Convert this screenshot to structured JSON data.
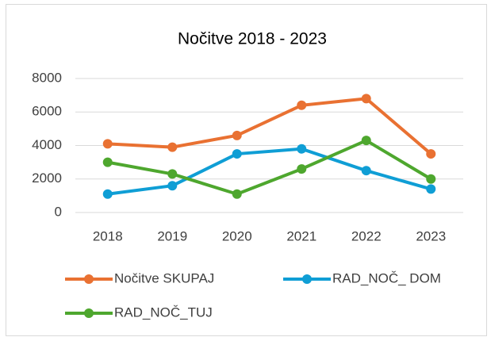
{
  "chart_data": {
    "type": "line",
    "title": "Nočitve 2018 - 2023",
    "categories": [
      "2018",
      "2019",
      "2020",
      "2021",
      "2022",
      "2023"
    ],
    "series": [
      {
        "name": "Nočitve SKUPAJ",
        "color": "#e97132",
        "values": [
          4100,
          3900,
          4600,
          6400,
          6800,
          3500
        ]
      },
      {
        "name": "RAD_NOČ_ DOM",
        "color": "#0f9ed5",
        "values": [
          1100,
          1600,
          3500,
          3800,
          2500,
          1400
        ]
      },
      {
        "name": "RAD_NOČ_TUJ",
        "color": "#4ea72e",
        "values": [
          3000,
          2300,
          1100,
          2600,
          4300,
          2000
        ]
      }
    ],
    "ylim": [
      0,
      8000
    ],
    "yticks": [
      0,
      2000,
      4000,
      6000,
      8000
    ],
    "grid": true,
    "legend": "bottom"
  }
}
